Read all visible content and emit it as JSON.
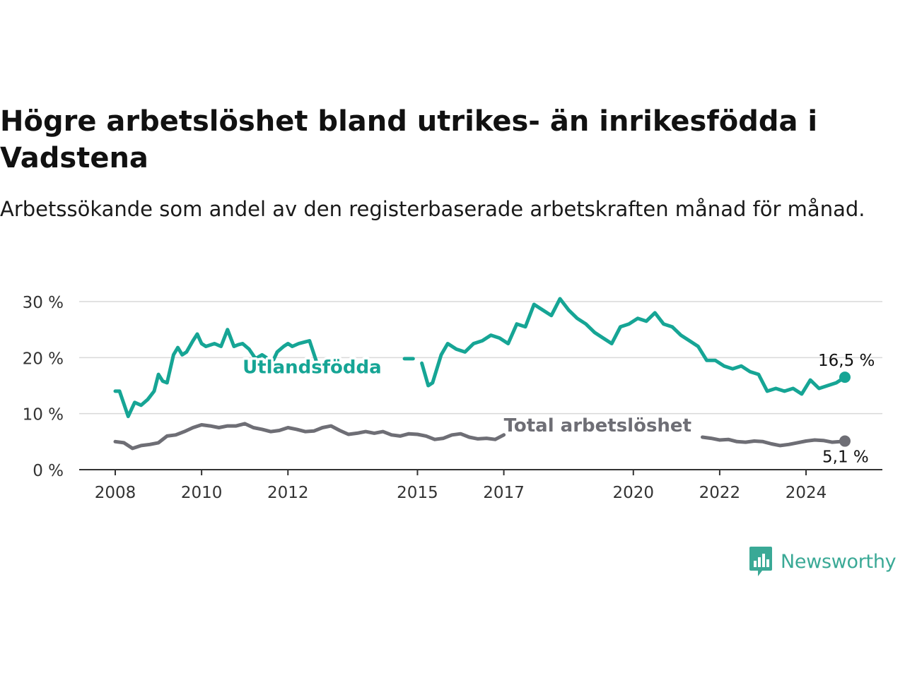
{
  "title": "Högre arbetslöshet bland utrikes- än inrikesfödda i Vadstena",
  "subtitle": "Arbetssökande som andel av den registerbaserade arbetskraften månad för månad.",
  "brand": "Newsworthy",
  "colors": {
    "foreign": "#16a595",
    "total": "#6e6e75",
    "grid": "#d9d9d9",
    "axis": "#333333",
    "brand": "#3aa996"
  },
  "chart_data": {
    "type": "line",
    "y_ticks": [
      0,
      10,
      20,
      30
    ],
    "y_tick_labels": [
      "0 %",
      "10 %",
      "20 %",
      "30 %"
    ],
    "ylim": [
      0,
      30
    ],
    "x_ticks": [
      2008,
      2010,
      2012,
      2015,
      2017,
      2020,
      2022,
      2024
    ],
    "x_tick_labels": [
      "2008",
      "2010",
      "2012",
      "2015",
      "2017",
      "2020",
      "2022",
      "2024"
    ],
    "xlim": [
      2007.25,
      2025.75
    ],
    "grid": true,
    "series": [
      {
        "name": "Utlandsfödda",
        "color": "#16a595",
        "end_label": "16,5 %",
        "segments": [
          {
            "x": [
              2008.0,
              2008.1,
              2008.3,
              2008.45,
              2008.6,
              2008.75,
              2008.9,
              2009.0,
              2009.1,
              2009.2,
              2009.35,
              2009.45,
              2009.55,
              2009.65,
              2009.8,
              2009.9,
              2010.0,
              2010.1,
              2010.3,
              2010.45,
              2010.6,
              2010.75,
              2010.85,
              2010.95,
              2011.1,
              2011.25,
              2011.4,
              2011.5,
              2011.6,
              2011.75,
              2011.9,
              2012.0,
              2012.1,
              2012.25,
              2012.4,
              2012.5,
              2012.65
            ],
            "y": [
              14.0,
              14.0,
              9.5,
              12.0,
              11.5,
              12.5,
              14.0,
              17.0,
              15.8,
              15.5,
              20.5,
              21.8,
              20.5,
              21.0,
              23.0,
              24.2,
              22.5,
              22.0,
              22.5,
              22.0,
              25.0,
              22.0,
              22.3,
              22.5,
              21.5,
              19.8,
              20.5,
              20.0,
              18.5,
              21.0,
              22.0,
              22.5,
              22.0,
              22.5,
              22.8,
              23.0,
              19.5
            ]
          },
          {
            "x": [
              2014.7,
              2014.9
            ],
            "y": [
              19.8,
              19.8
            ]
          },
          {
            "x": [
              2015.1,
              2015.25,
              2015.35,
              2015.45,
              2015.55,
              2015.7,
              2015.9,
              2016.1,
              2016.3,
              2016.5,
              2016.7,
              2016.9,
              2017.1,
              2017.3,
              2017.5,
              2017.7,
              2017.9,
              2018.1,
              2018.3,
              2018.5,
              2018.7,
              2018.9,
              2019.1,
              2019.3,
              2019.5,
              2019.7,
              2019.9,
              2020.1,
              2020.3,
              2020.5,
              2020.7,
              2020.9,
              2021.1,
              2021.3,
              2021.5,
              2021.7,
              2021.9,
              2022.1,
              2022.3,
              2022.5,
              2022.7,
              2022.9,
              2023.1,
              2023.3,
              2023.5,
              2023.7,
              2023.9,
              2024.1,
              2024.3,
              2024.5,
              2024.7,
              2024.9
            ],
            "y": [
              19.0,
              15.0,
              15.5,
              18.0,
              20.5,
              22.5,
              21.5,
              21.0,
              22.5,
              23.0,
              24.0,
              23.5,
              22.5,
              26.0,
              25.5,
              29.5,
              28.5,
              27.5,
              30.5,
              28.5,
              27.0,
              26.0,
              24.5,
              23.5,
              22.5,
              25.5,
              26.0,
              27.0,
              26.5,
              28.0,
              26.0,
              25.5,
              24.0,
              23.0,
              22.0,
              19.5,
              19.5,
              18.5,
              18.0,
              18.5,
              17.5,
              17.0,
              14.0,
              14.5,
              14.0,
              14.5,
              13.5,
              16.0,
              14.5,
              15.0,
              15.5,
              16.5
            ]
          }
        ]
      },
      {
        "name": "Total arbetslöshet",
        "color": "#6e6e75",
        "end_label": "5,1 %",
        "segments": [
          {
            "x": [
              2008.0,
              2008.2,
              2008.4,
              2008.6,
              2008.8,
              2009.0,
              2009.2,
              2009.4,
              2009.6,
              2009.8,
              2010.0,
              2010.2,
              2010.4,
              2010.6,
              2010.8,
              2011.0,
              2011.2,
              2011.4,
              2011.6,
              2011.8,
              2012.0,
              2012.2,
              2012.4,
              2012.6,
              2012.8,
              2013.0,
              2013.2,
              2013.4,
              2013.6,
              2013.8,
              2014.0,
              2014.2,
              2014.4,
              2014.6,
              2014.8,
              2015.0,
              2015.2,
              2015.4,
              2015.6,
              2015.8,
              2016.0,
              2016.2,
              2016.4,
              2016.6,
              2016.8,
              2017.0
            ],
            "y": [
              5.0,
              4.8,
              3.8,
              4.3,
              4.5,
              4.8,
              6.0,
              6.2,
              6.8,
              7.5,
              8.0,
              7.8,
              7.5,
              7.8,
              7.8,
              8.2,
              7.5,
              7.2,
              6.8,
              7.0,
              7.5,
              7.2,
              6.8,
              6.9,
              7.5,
              7.8,
              7.0,
              6.3,
              6.5,
              6.8,
              6.5,
              6.8,
              6.2,
              6.0,
              6.4,
              6.3,
              6.0,
              5.4,
              5.6,
              6.2,
              6.4,
              5.8,
              5.5,
              5.6,
              5.4,
              6.2
            ]
          },
          {
            "x": [
              2021.6,
              2021.8,
              2022.0,
              2022.2,
              2022.4,
              2022.6,
              2022.8,
              2023.0,
              2023.2,
              2023.4,
              2023.6,
              2023.8,
              2024.0,
              2024.2,
              2024.4,
              2024.6,
              2024.8,
              2024.9
            ],
            "y": [
              5.8,
              5.6,
              5.3,
              5.4,
              5.0,
              4.9,
              5.1,
              5.0,
              4.6,
              4.3,
              4.5,
              4.8,
              5.1,
              5.3,
              5.2,
              4.9,
              5.0,
              5.1
            ]
          }
        ]
      }
    ],
    "annotations": [
      {
        "text": "Utlandsfödda",
        "series": "Utlandsfödda",
        "x": 2010.95,
        "y": 17.2
      },
      {
        "text": "Total arbetslöshet",
        "series": "Total arbetslöshet",
        "x": 2017.0,
        "y": 6.8
      }
    ]
  }
}
